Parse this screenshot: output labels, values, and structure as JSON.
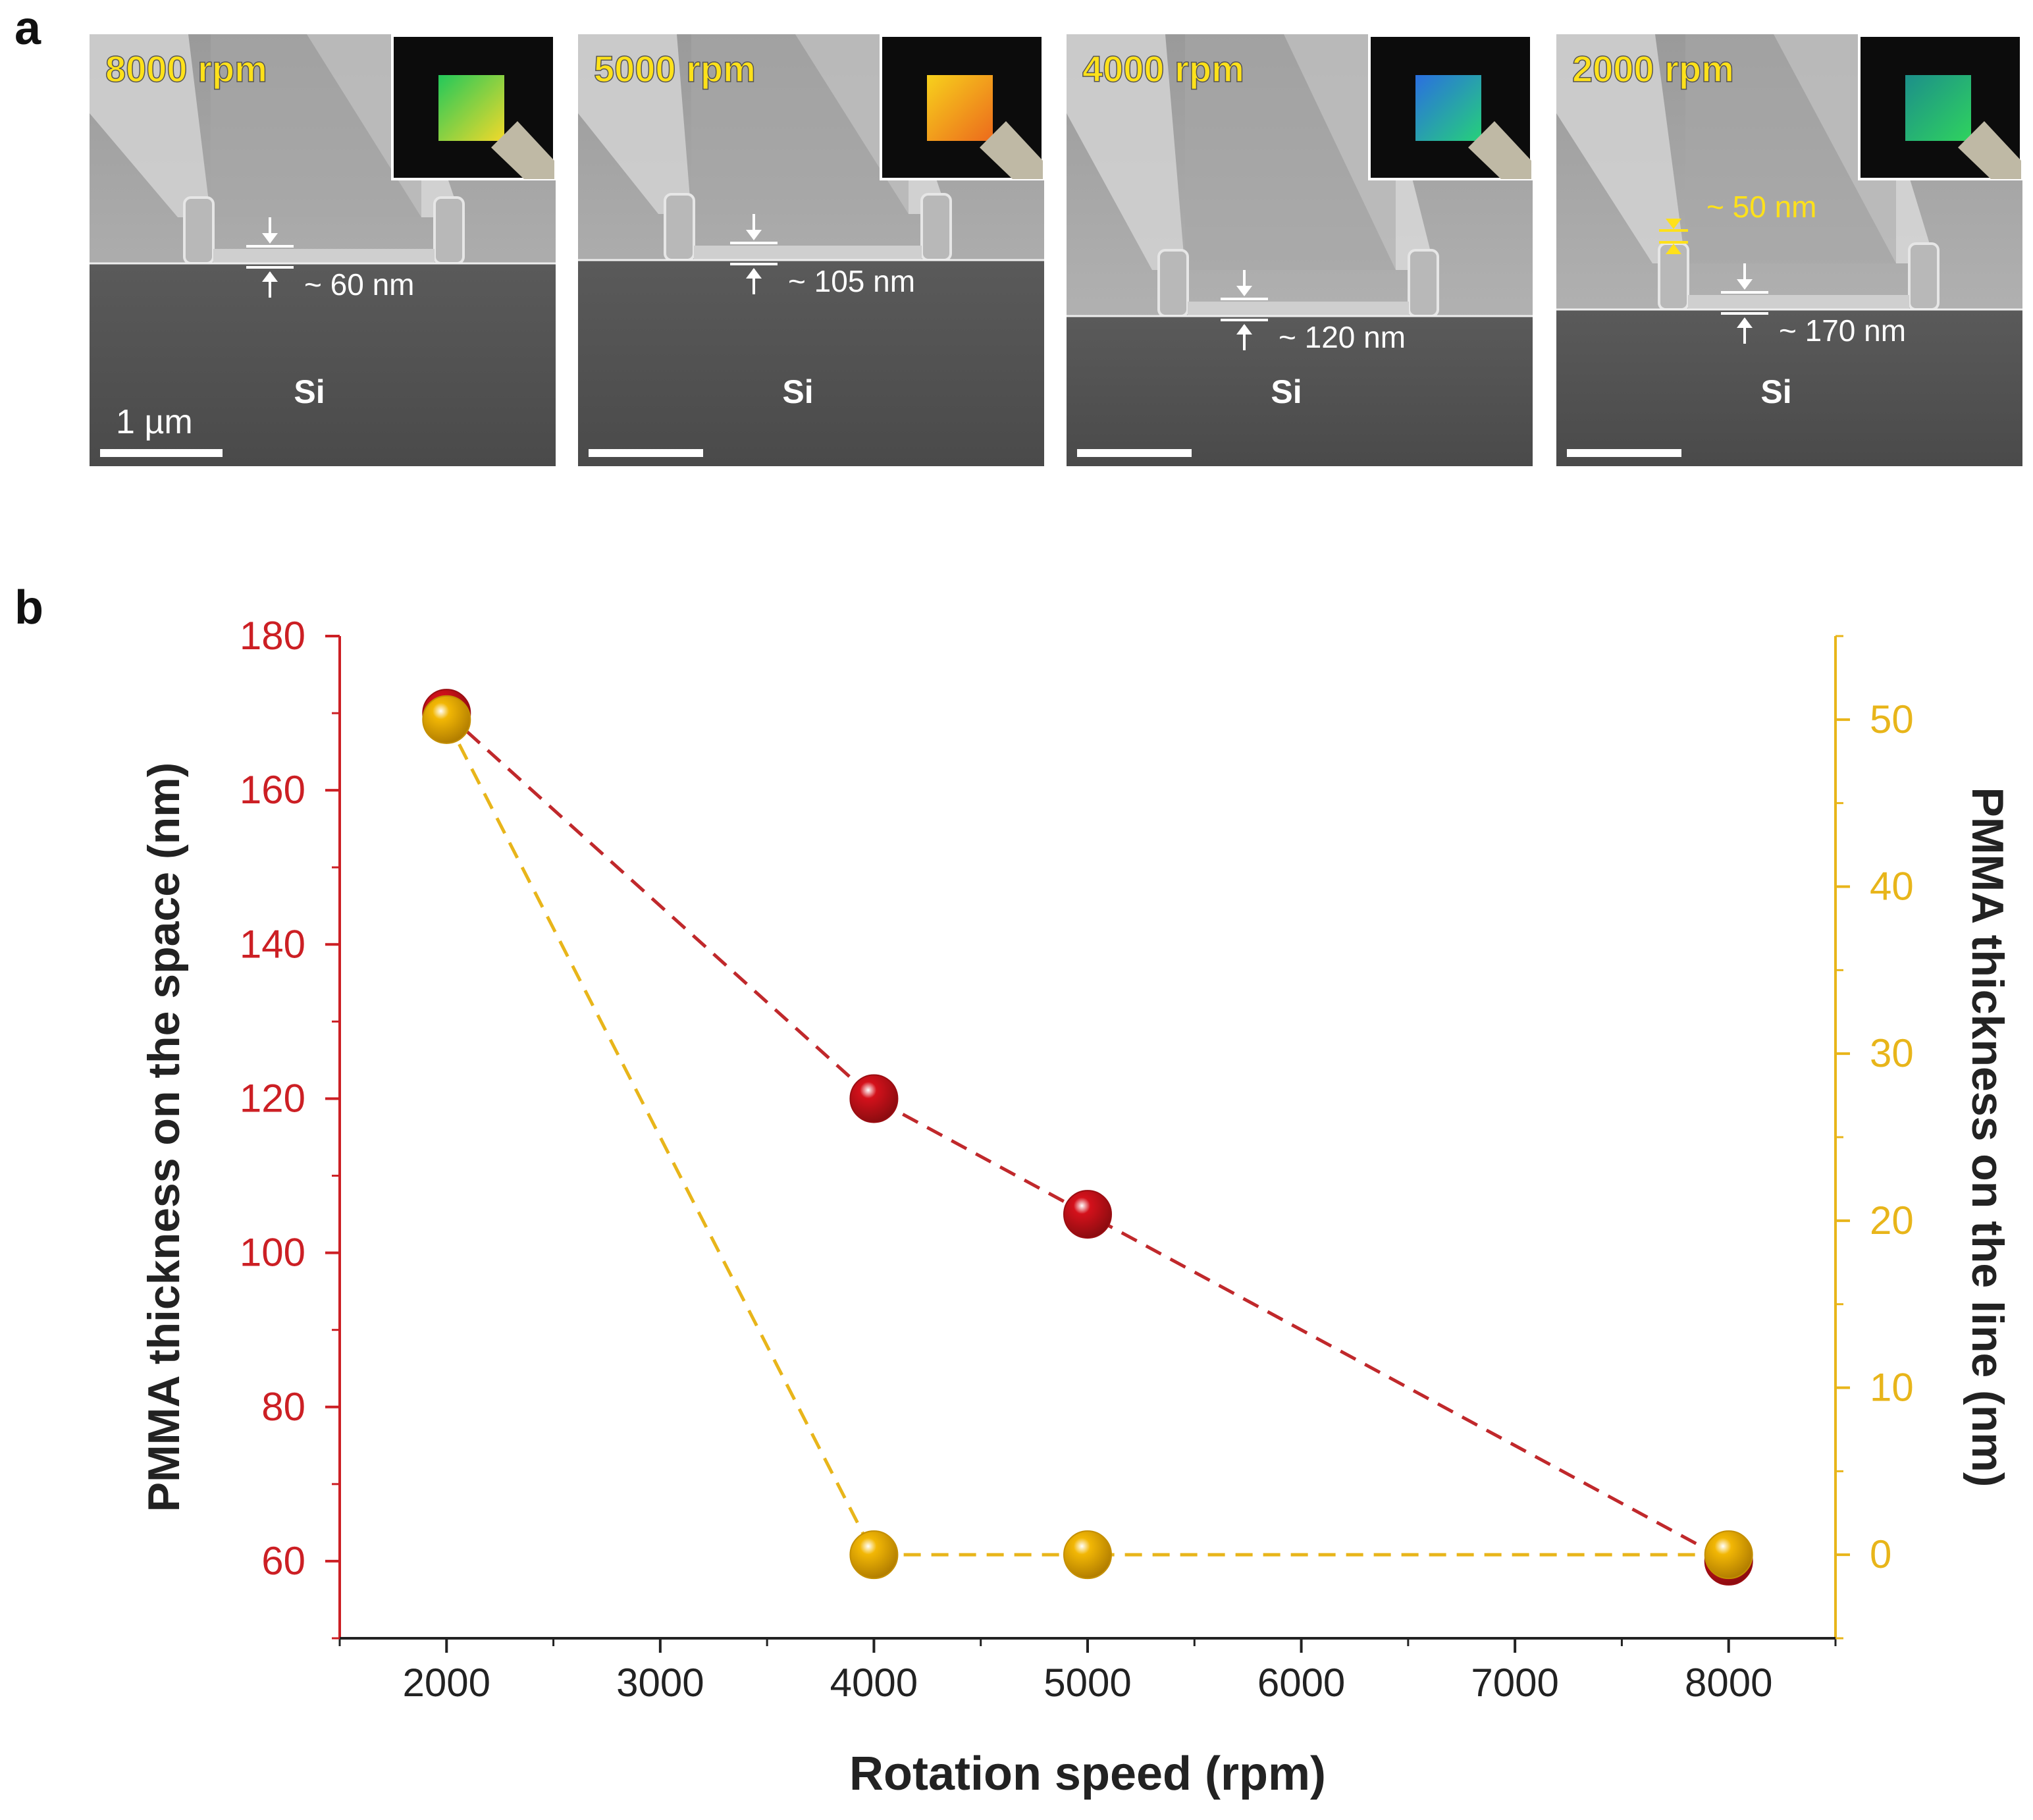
{
  "panel_a": {
    "label": "a",
    "sem_panels": [
      {
        "rpm": "8000 rpm",
        "space_thickness": "~ 60 nm",
        "substrate": "Si",
        "scale_bar": "1 µm",
        "inset_color_top": "#22c85a",
        "inset_color_bottom": "#f2d92a"
      },
      {
        "rpm": "5000 rpm",
        "space_thickness": "~ 105 nm",
        "substrate": "Si",
        "inset_color_top": "#f7d11c",
        "inset_color_bottom": "#ec6a1c"
      },
      {
        "rpm": "4000 rpm",
        "space_thickness": "~ 120 nm",
        "substrate": "Si",
        "inset_color_top": "#2a6fe0",
        "inset_color_bottom": "#26d07a"
      },
      {
        "rpm": "2000 rpm",
        "line_thickness": "~ 50 nm",
        "space_thickness": "~ 170 nm",
        "substrate": "Si",
        "inset_color_top": "#1c8f8a",
        "inset_color_bottom": "#2fd35e"
      }
    ],
    "label_color": "#ffe11a",
    "annotation_color": "#ffffff",
    "line_annotation_color": "#ffe11a"
  },
  "panel_b": {
    "label": "b"
  },
  "chart_data": {
    "type": "scatter",
    "title": "",
    "xlabel": "Rotation speed (rpm)",
    "ylabel_left": "PMMA thickness on the space (nm)",
    "ylabel_right": "PMMA thickness on the line (nm)",
    "xlim": [
      1500,
      8500
    ],
    "ylim_left": [
      50,
      180
    ],
    "ylim_right": [
      -5,
      55
    ],
    "x_ticks": [
      2000,
      3000,
      4000,
      5000,
      6000,
      7000,
      8000
    ],
    "y_left_ticks": [
      60,
      80,
      100,
      120,
      140,
      160,
      180
    ],
    "y_right_ticks": [
      0,
      10,
      20,
      30,
      40,
      50
    ],
    "grid": false,
    "series": [
      {
        "name": "PMMA thickness on the space",
        "axis": "left",
        "color": "#d4111b",
        "line_color": "#c0282b",
        "x": [
          2000,
          4000,
          5000,
          8000
        ],
        "y": [
          170,
          120,
          105,
          60
        ]
      },
      {
        "name": "PMMA thickness on the line",
        "axis": "right",
        "color": "#f2b705",
        "line_color": "#e8b51a",
        "x": [
          2000,
          4000,
          5000,
          8000
        ],
        "y": [
          50,
          0,
          0,
          0
        ]
      }
    ],
    "left_axis_color": "#cc1f24",
    "right_axis_color": "#e8b51a"
  }
}
